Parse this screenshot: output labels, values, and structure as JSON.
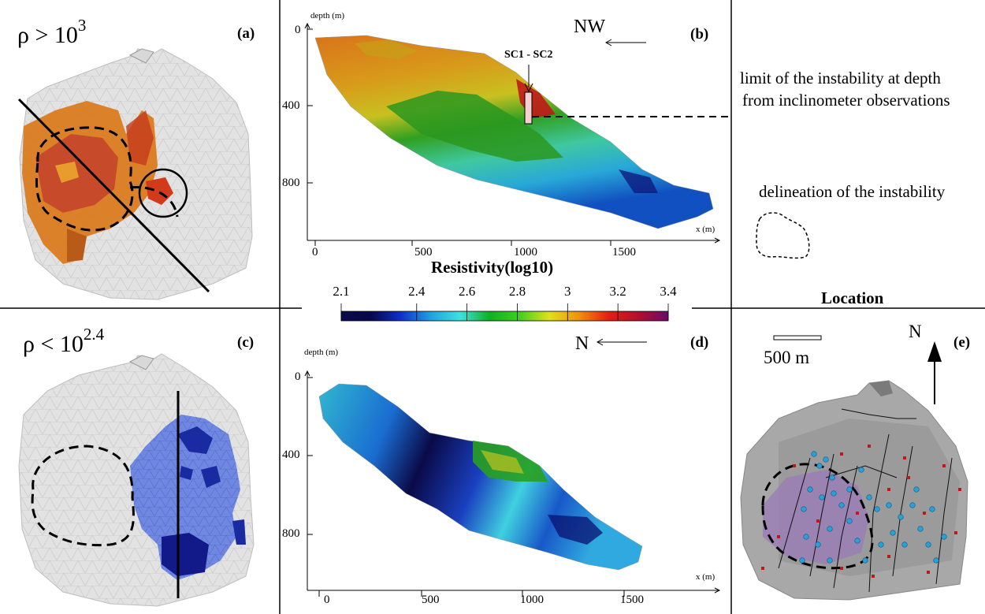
{
  "panels": {
    "a": {
      "tag": "(a)",
      "condition": "ρ > 10",
      "exponent": "3"
    },
    "b": {
      "tag": "(b)",
      "direction": "NW",
      "annotation": "SC1 - SC2",
      "y_axis_label": "depth (m)",
      "x_axis_label": "x (m)",
      "y_ticks": [
        "0",
        "400",
        "800"
      ],
      "x_ticks": [
        "0",
        "500",
        "1000",
        "1500"
      ]
    },
    "c": {
      "tag": "(c)",
      "condition": "ρ < 10",
      "exponent": "2.4"
    },
    "d": {
      "tag": "(d)",
      "direction": "N",
      "y_axis_label": "depth (m)",
      "x_axis_label": "x (m)",
      "y_ticks": [
        "0",
        "400",
        "800"
      ],
      "x_ticks": [
        "0",
        "500",
        "1000",
        "1500"
      ]
    },
    "e": {
      "tag": "(e)",
      "scale_label": "500 m",
      "north_label": "N"
    }
  },
  "legend": {
    "limit_text_line1": "limit of the instability at depth",
    "limit_text_line2": "from inclinometer observations",
    "delineation_text": "delineation of the instability",
    "location_title": "Location"
  },
  "colorbar": {
    "title": "Resistivity(log10)",
    "ticks": [
      "2.1",
      "2.4",
      "2.6",
      "2.8",
      "3",
      "3.2",
      "3.4"
    ],
    "tick_values": [
      2.1,
      2.4,
      2.6,
      2.8,
      3.0,
      3.2,
      3.4
    ],
    "range": [
      2.1,
      3.4
    ],
    "colors": [
      "#0b0b4e",
      "#06064a",
      "#1030c8",
      "#20a0e0",
      "#40e0e0",
      "#10b020",
      "#40d020",
      "#e0e020",
      "#f09010",
      "#e02010",
      "#b01030",
      "#6a0a6a"
    ]
  }
}
